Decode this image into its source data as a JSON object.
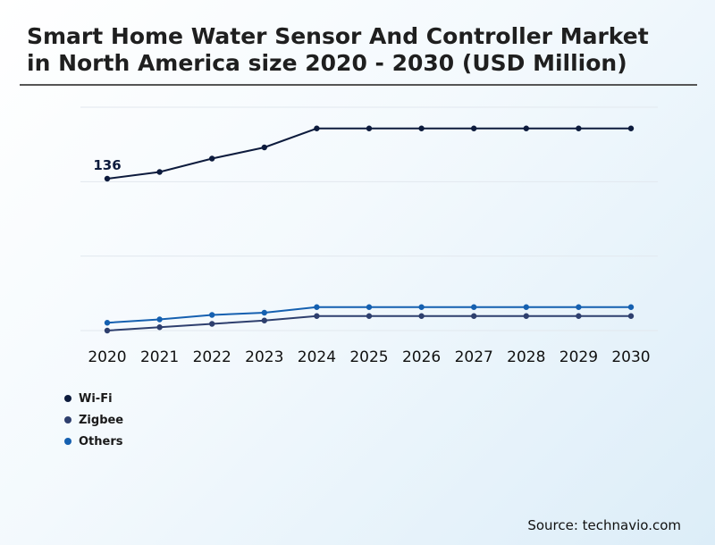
{
  "title": "Smart Home Water Sensor And Controller Market in North America size 2020 - 2030 (USD Million)",
  "source": "Source: technavio.com",
  "colors": {
    "wifi": "#0d1b3d",
    "zigbee": "#2e3f6e",
    "others": "#1560b0",
    "grid": "#e2e8ee"
  },
  "chart_data": {
    "type": "line",
    "title": "Smart Home Water Sensor And Controller Market in North America size 2020 - 2030 (USD Million)",
    "xlabel": "",
    "ylabel": "",
    "grid": true,
    "legend_position": "bottom-left",
    "x": [
      "2020",
      "2021",
      "2022",
      "2023",
      "2024",
      "2025",
      "2026",
      "2027",
      "2028",
      "2029",
      "2030"
    ],
    "ylim": [
      0,
      200
    ],
    "series": [
      {
        "name": "Wi-Fi",
        "color": "#0d1b3d",
        "values": [
          136,
          142,
          154,
          164,
          181,
          181,
          181,
          181,
          181,
          181,
          181
        ]
      },
      {
        "name": "Zigbee",
        "color": "#2e3f6e",
        "values": [
          0,
          3,
          6,
          9,
          13,
          13,
          13,
          13,
          13,
          13,
          13
        ]
      },
      {
        "name": "Others",
        "color": "#1560b0",
        "values": [
          7,
          10,
          14,
          16,
          21,
          21,
          21,
          21,
          21,
          21,
          21
        ]
      }
    ],
    "annotations": [
      {
        "series": "Wi-Fi",
        "x": "2020",
        "label": "136"
      }
    ]
  }
}
